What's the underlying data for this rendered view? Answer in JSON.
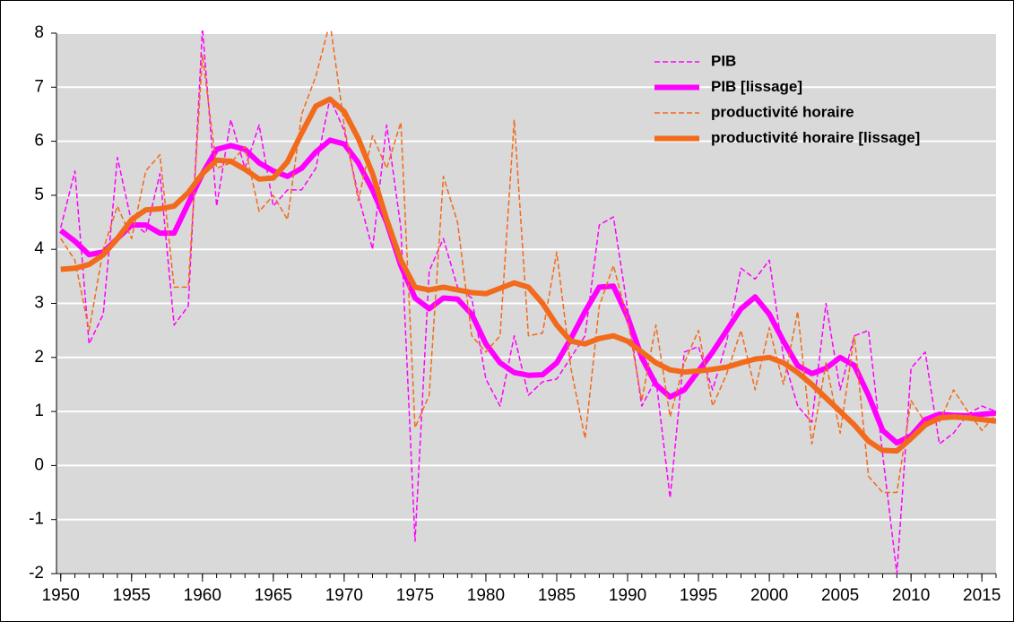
{
  "chart_data": {
    "type": "line",
    "x": [
      1950,
      1951,
      1952,
      1953,
      1954,
      1955,
      1956,
      1957,
      1958,
      1959,
      1960,
      1961,
      1962,
      1963,
      1964,
      1965,
      1966,
      1967,
      1968,
      1969,
      1970,
      1971,
      1972,
      1973,
      1974,
      1975,
      1976,
      1977,
      1978,
      1979,
      1980,
      1981,
      1982,
      1983,
      1984,
      1985,
      1986,
      1987,
      1988,
      1989,
      1990,
      1991,
      1992,
      1993,
      1994,
      1995,
      1996,
      1997,
      1998,
      1999,
      2000,
      2001,
      2002,
      2003,
      2004,
      2005,
      2006,
      2007,
      2008,
      2009,
      2010,
      2011,
      2012,
      2013,
      2014,
      2015,
      2016
    ],
    "series": [
      {
        "name": "PIB",
        "color": "#ff00ff",
        "width": 1.5,
        "dashed": true,
        "values": [
          4.4,
          5.45,
          2.25,
          2.8,
          5.7,
          4.5,
          4.3,
          5.4,
          2.6,
          2.95,
          8.1,
          4.8,
          6.4,
          5.5,
          6.3,
          4.8,
          5.1,
          5.1,
          5.5,
          6.8,
          6.2,
          5.0,
          4.0,
          6.3,
          4.4,
          -1.4,
          3.6,
          4.2,
          3.3,
          3.1,
          1.6,
          1.1,
          2.4,
          1.3,
          1.55,
          1.6,
          2.0,
          2.4,
          4.45,
          4.6,
          2.9,
          1.1,
          1.6,
          -0.6,
          2.1,
          2.2,
          1.4,
          2.3,
          3.65,
          3.45,
          3.8,
          2.0,
          1.1,
          0.8,
          3.0,
          1.4,
          2.4,
          2.5,
          0.2,
          -2.0,
          1.8,
          2.1,
          0.4,
          0.6,
          0.95,
          1.1,
          1.0
        ]
      },
      {
        "name": "PIB [lissage]",
        "color": "#ff00ff",
        "width": 6,
        "dashed": false,
        "values": [
          4.35,
          4.15,
          3.9,
          3.95,
          4.2,
          4.45,
          4.45,
          4.3,
          4.3,
          4.85,
          5.4,
          5.85,
          5.92,
          5.85,
          5.6,
          5.45,
          5.35,
          5.5,
          5.8,
          6.02,
          5.95,
          5.6,
          5.1,
          4.5,
          3.7,
          3.1,
          2.9,
          3.1,
          3.08,
          2.8,
          2.25,
          1.9,
          1.72,
          1.67,
          1.68,
          1.9,
          2.35,
          2.85,
          3.3,
          3.32,
          2.75,
          2.0,
          1.5,
          1.27,
          1.4,
          1.75,
          2.1,
          2.5,
          2.9,
          3.12,
          2.8,
          2.3,
          1.85,
          1.7,
          1.8,
          2.0,
          1.85,
          1.3,
          0.65,
          0.42,
          0.55,
          0.85,
          0.95,
          0.93,
          0.92,
          0.95,
          0.97
        ]
      },
      {
        "name": "productivité horaire",
        "color": "#f26a1b",
        "width": 1.5,
        "dashed": true,
        "values": [
          4.2,
          3.8,
          2.5,
          4.0,
          4.8,
          4.2,
          5.45,
          5.75,
          3.3,
          3.3,
          7.6,
          5.5,
          5.6,
          5.9,
          4.7,
          5.0,
          4.55,
          6.5,
          7.2,
          8.2,
          6.3,
          4.9,
          6.1,
          5.5,
          6.35,
          0.7,
          1.3,
          5.35,
          4.5,
          2.4,
          2.1,
          2.4,
          6.4,
          2.4,
          2.45,
          3.95,
          1.8,
          0.5,
          2.95,
          3.7,
          2.7,
          1.2,
          2.6,
          0.9,
          1.9,
          2.5,
          1.1,
          1.7,
          2.5,
          1.4,
          2.55,
          1.5,
          2.85,
          0.4,
          1.9,
          0.6,
          2.4,
          -0.2,
          -0.5,
          -0.5,
          1.2,
          0.8,
          0.8,
          1.4,
          1.0,
          0.65,
          0.95
        ]
      },
      {
        "name": "productivité horaire [lissage]",
        "color": "#f26a1b",
        "width": 6,
        "dashed": false,
        "values": [
          3.63,
          3.65,
          3.72,
          3.9,
          4.2,
          4.55,
          4.73,
          4.75,
          4.8,
          5.05,
          5.4,
          5.65,
          5.63,
          5.48,
          5.3,
          5.32,
          5.62,
          6.15,
          6.65,
          6.78,
          6.55,
          6.05,
          5.4,
          4.55,
          3.8,
          3.3,
          3.25,
          3.3,
          3.25,
          3.2,
          3.18,
          3.28,
          3.38,
          3.3,
          3.0,
          2.6,
          2.3,
          2.25,
          2.35,
          2.4,
          2.3,
          2.1,
          1.9,
          1.77,
          1.73,
          1.75,
          1.78,
          1.82,
          1.9,
          1.97,
          2.0,
          1.9,
          1.72,
          1.5,
          1.25,
          1.0,
          0.75,
          0.45,
          0.28,
          0.27,
          0.5,
          0.75,
          0.88,
          0.9,
          0.88,
          0.85,
          0.82
        ]
      }
    ],
    "xlim": [
      1949.7,
      2016
    ],
    "xticks": [
      1950,
      1955,
      1960,
      1965,
      1970,
      1975,
      1980,
      1985,
      1990,
      1995,
      2000,
      2005,
      2010,
      2015
    ],
    "ylim": [
      -2,
      8
    ],
    "yticks": [
      -2,
      -1,
      0,
      1,
      2,
      3,
      4,
      5,
      6,
      7,
      8
    ],
    "grid": true,
    "legend": "upper-right",
    "background": "#d9d9d9"
  }
}
